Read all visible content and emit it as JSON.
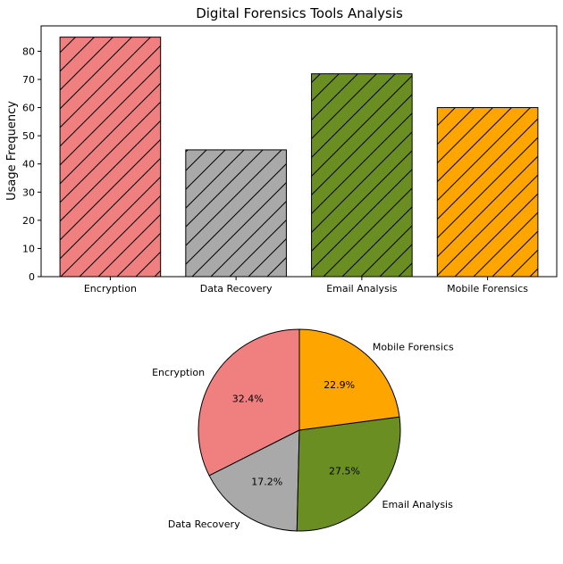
{
  "chart_data": [
    {
      "type": "bar",
      "title": "Digital Forensics Tools Analysis",
      "xlabel": "",
      "ylabel": "Usage Frequency",
      "categories": [
        "Encryption",
        "Data Recovery",
        "Email Analysis",
        "Mobile Forensics"
      ],
      "values": [
        85,
        45,
        72,
        60
      ],
      "colors": [
        "#f08080",
        "#a9a9a9",
        "#6b8e23",
        "#ffa500"
      ],
      "hatch": "diagonal",
      "ylim": [
        0,
        89
      ],
      "yticks": [
        0,
        10,
        20,
        30,
        40,
        50,
        60,
        70,
        80
      ],
      "grid": false
    },
    {
      "type": "pie",
      "labels": [
        "Encryption",
        "Data Recovery",
        "Email Analysis",
        "Mobile Forensics"
      ],
      "values": [
        85,
        45,
        72,
        60
      ],
      "percent_labels": [
        "32.4%",
        "17.2%",
        "27.5%",
        "22.9%"
      ],
      "colors": [
        "#f08080",
        "#a9a9a9",
        "#6b8e23",
        "#ffa500"
      ],
      "start_angle": 90,
      "direction": "counterclockwise"
    }
  ]
}
